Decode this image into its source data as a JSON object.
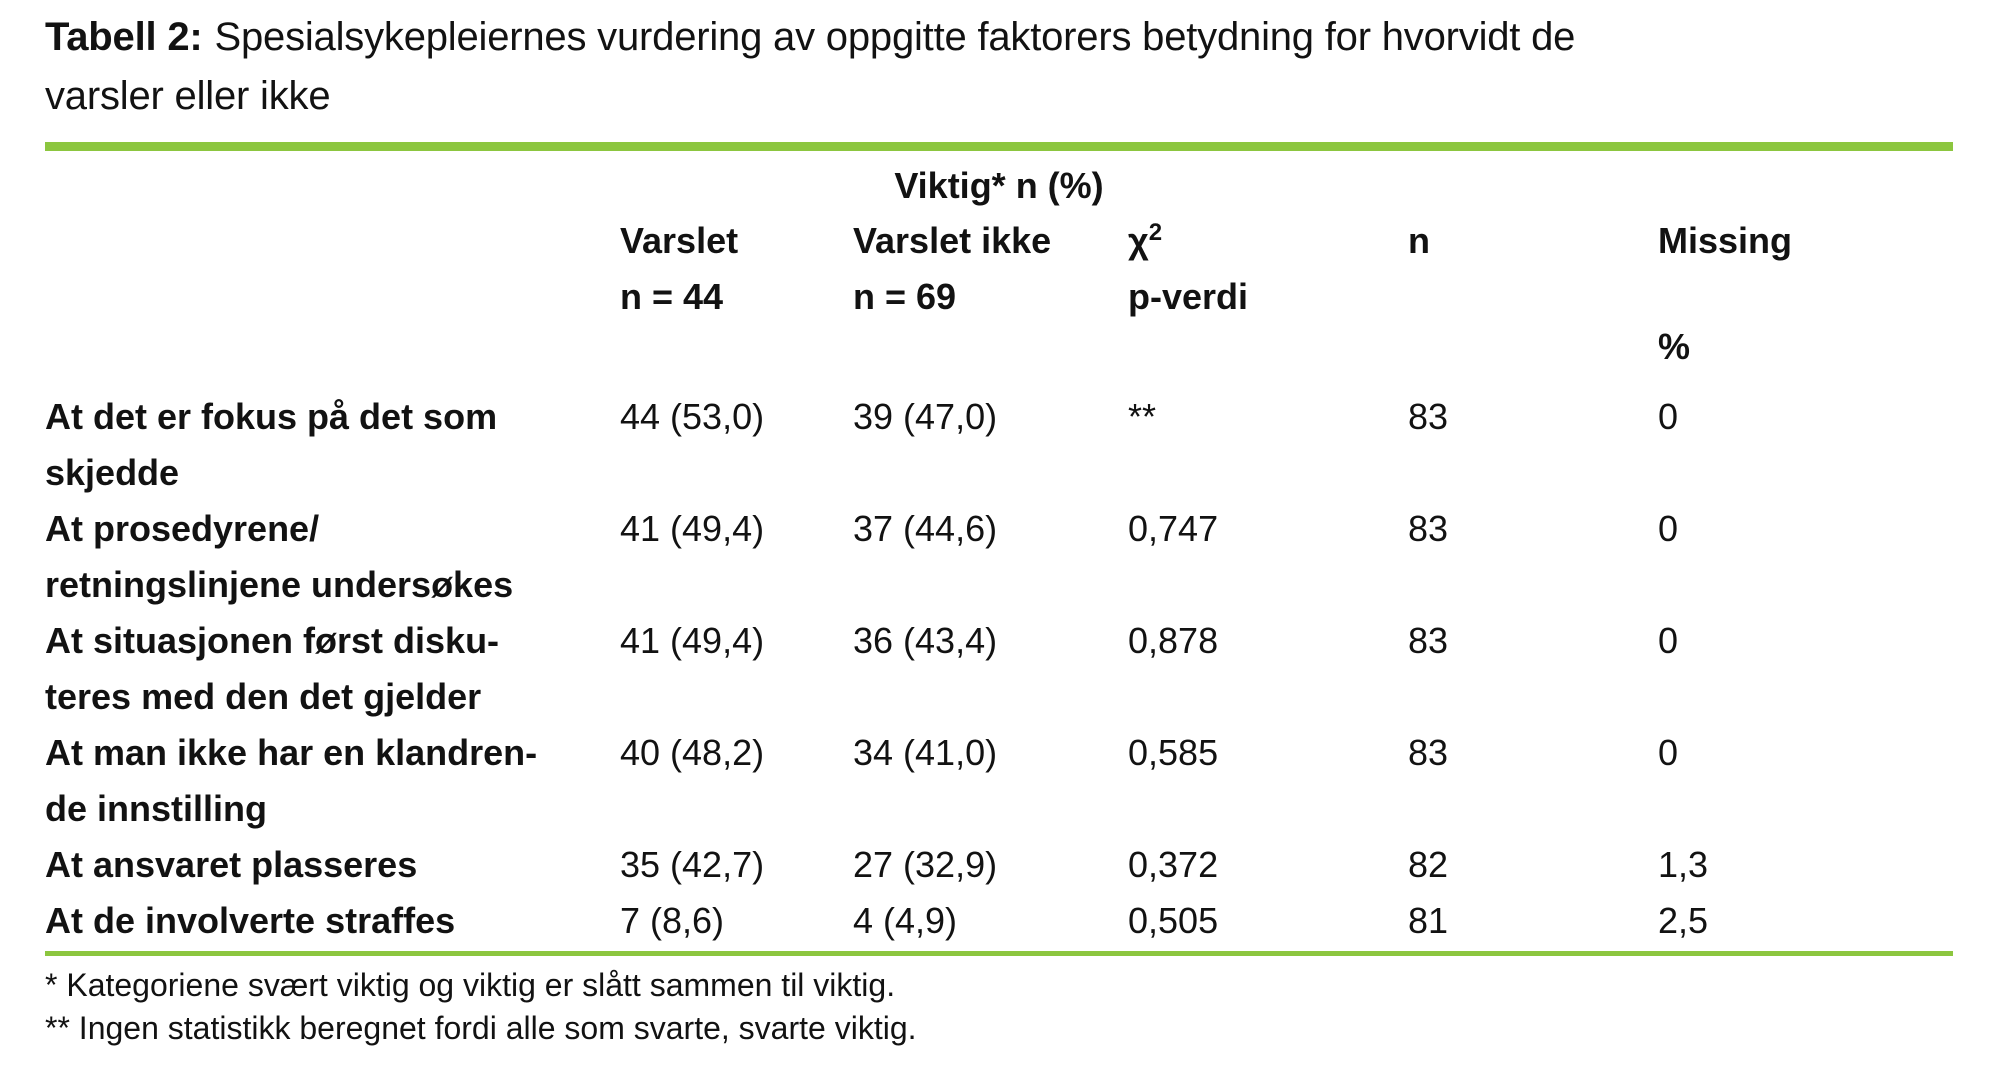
{
  "title": {
    "prefix": "Tabell 2:",
    "line1": "Spesialsykepleiernes vurdering av oppgitte faktorers betydning for hvorvidt de",
    "line2": "varsler eller ikke"
  },
  "table": {
    "span_header": "Viktig* n (%)",
    "columns": {
      "varslet": {
        "title": "Varslet",
        "subtitle": "n = 44"
      },
      "varslet_ikke": {
        "title": "Varslet ikke",
        "subtitle": "n = 69"
      },
      "chi2": {
        "symbol": "χ",
        "superscript": "2",
        "subtitle": "p-verdi"
      },
      "n": {
        "title": "n"
      },
      "missing": {
        "title": "Missing",
        "unit": "%"
      }
    },
    "rows": [
      {
        "label1": "At det er fokus på det som",
        "label2": "skjedde",
        "varslet": "44 (53,0)",
        "varslet_ikke": "39 (47,0)",
        "p_verdi": "**",
        "n": "83",
        "missing": "0"
      },
      {
        "label1": "At prosedyrene/",
        "label2": "retningslinjene undersøkes",
        "varslet": "41 (49,4)",
        "varslet_ikke": "37 (44,6)",
        "p_verdi": "0,747",
        "n": "83",
        "missing": "0"
      },
      {
        "label1": "At situasjonen først disku-",
        "label2": "teres med den det gjelder",
        "varslet": "41 (49,4)",
        "varslet_ikke": "36 (43,4)",
        "p_verdi": "0,878",
        "n": "83",
        "missing": "0"
      },
      {
        "label1": "At man ikke har en klandren-",
        "label2": "de innstilling",
        "varslet": "40 (48,2)",
        "varslet_ikke": "34 (41,0)",
        "p_verdi": "0,585",
        "n": "83",
        "missing": "0"
      },
      {
        "label1": "At ansvaret plasseres",
        "varslet": "35 (42,7)",
        "varslet_ikke": "27 (32,9)",
        "p_verdi": "0,372",
        "n": "82",
        "missing": "1,3"
      },
      {
        "label1": "At de involverte straffes",
        "varslet": "7 (8,6)",
        "varslet_ikke": "4 (4,9)",
        "p_verdi": "0,505",
        "n": "81",
        "missing": "2,5"
      }
    ],
    "footnotes": [
      "* Kategoriene svært viktig og viktig er slått sammen til viktig.",
      "** Ingen statistikk beregnet fordi alle som svarte, svarte viktig."
    ]
  },
  "colors": {
    "accent_green": "#8cc63f"
  }
}
